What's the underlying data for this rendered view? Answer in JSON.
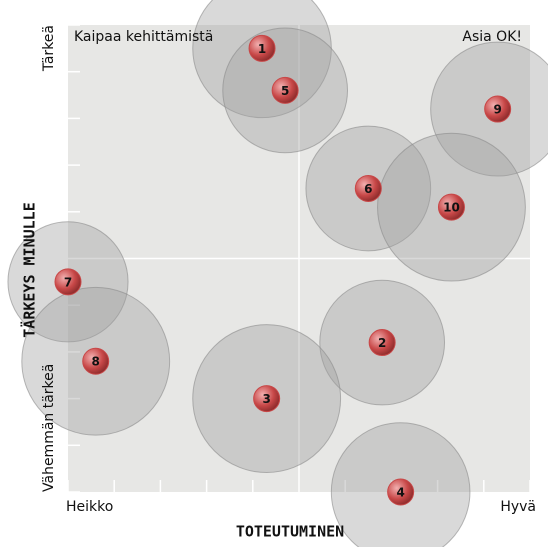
{
  "chart_data": {
    "type": "bubble",
    "xlabel": "TOTEUTUMINEN",
    "ylabel": "TÄRKEYS MINULLE",
    "x_end_labels": [
      "Heikko",
      "Hyvä"
    ],
    "y_end_labels": [
      "Vähemmän tärkeä",
      "Tärkeä"
    ],
    "annotations": [
      "Kaipaa kehittämistä",
      "Asia OK!"
    ],
    "labels": [
      "1",
      "2",
      "3",
      "4",
      "5",
      "6",
      "7",
      "8",
      "9",
      "10"
    ],
    "x": [
      4.2,
      6.8,
      4.3,
      7.2,
      4.7,
      6.5,
      0,
      0.6,
      9.3,
      8.3
    ],
    "values": [
      9.5,
      3.2,
      2.0,
      0,
      8.6,
      6.5,
      4.5,
      2.8,
      8.2,
      6.1
    ],
    "sizes": [
      1.5,
      1.35,
      1.6,
      1.5,
      1.35,
      1.35,
      1.3,
      1.6,
      1.45,
      1.6
    ],
    "color": "#c84848",
    "bubble_color": "#a0a0a0",
    "xlim": [
      0,
      10
    ],
    "ylim": [
      0,
      10
    ],
    "xticks": [
      0,
      1,
      2,
      3,
      4,
      5,
      6,
      7,
      8,
      9,
      10
    ],
    "yticks": [
      0,
      1,
      2,
      3,
      4,
      5,
      6,
      7,
      8,
      9,
      10
    ]
  }
}
